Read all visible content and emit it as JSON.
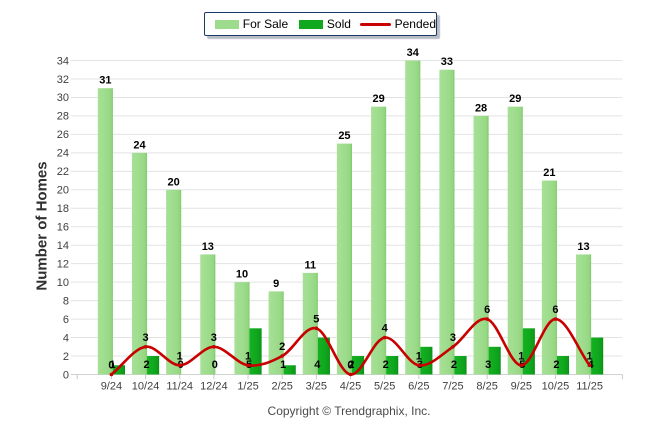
{
  "chart_data": {
    "type": "bar",
    "title": "",
    "categories": [
      "9/24",
      "10/24",
      "11/24",
      "12/24",
      "1/25",
      "2/25",
      "3/25",
      "4/25",
      "5/25",
      "6/25",
      "7/25",
      "8/25",
      "9/25",
      "10/25",
      "11/25"
    ],
    "series": [
      {
        "name": "For Sale",
        "type": "bar",
        "color": "#9ddc8c",
        "values": [
          31,
          24,
          20,
          13,
          10,
          9,
          11,
          25,
          29,
          34,
          33,
          28,
          29,
          21,
          13
        ]
      },
      {
        "name": "Sold",
        "type": "bar",
        "color": "#10a81e",
        "values": [
          1,
          2,
          0,
          0,
          5,
          1,
          4,
          2,
          2,
          3,
          2,
          3,
          5,
          2,
          4
        ]
      },
      {
        "name": "Pended",
        "type": "line",
        "color": "#c80000",
        "values": [
          0,
          3,
          1,
          3,
          1,
          2,
          5,
          0,
          4,
          1,
          3,
          6,
          1,
          6,
          1
        ]
      }
    ],
    "xlabel": "",
    "ylabel": "Number of Homes",
    "ylim": [
      0,
      34
    ],
    "ytick_step": 2,
    "grid": true,
    "legend_position": "top",
    "data_labels": true
  },
  "colors": {
    "background": "#ffffff",
    "gridline": "#e3e3e3",
    "axis_line": "#d2d2d2",
    "tick_mark": "#c9c9c9",
    "tick_label": "#404040",
    "value_label": "#000000",
    "legend_border": "#1f3c71",
    "for_sale_bar": "#9ddc8c",
    "sold_bar": "#10a81e",
    "pended_line": "#c80000"
  },
  "footer": {
    "copyright": "Copyright © Trendgraphix, Inc."
  }
}
